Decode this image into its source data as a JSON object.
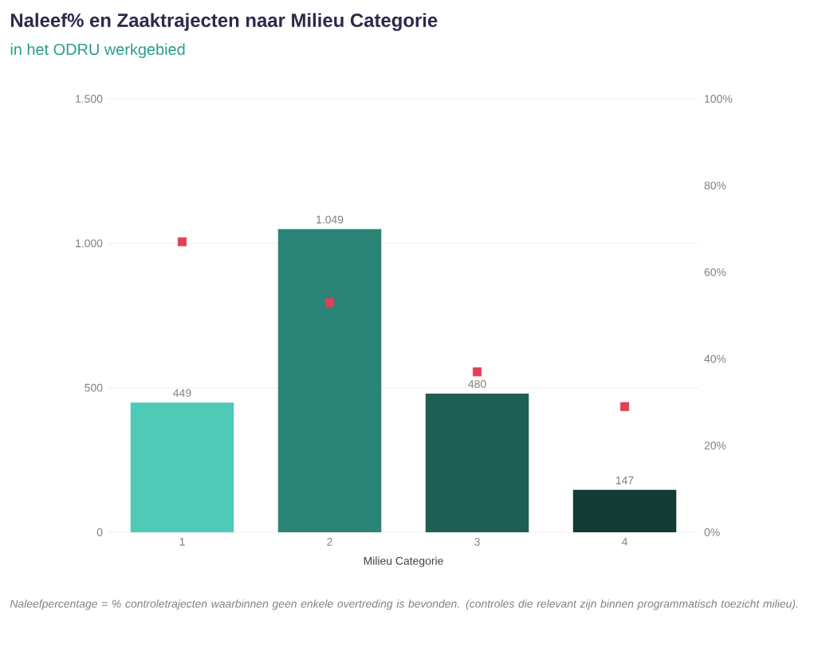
{
  "chart_data": {
    "type": "bar",
    "title": "Naleef% en Zaaktrajecten naar Milieu Categorie",
    "subtitle": "in het ODRU werkgebied",
    "xlabel": "Milieu Categorie",
    "categories": [
      "1",
      "2",
      "3",
      "4"
    ],
    "series": [
      {
        "colors": [
          "#4ecab6",
          "#2a8576",
          "#1f5e54",
          "#123b33"
        ],
        "values": [
          449,
          1049,
          480,
          147
        ],
        "value_labels": [
          "449",
          "1.049",
          "480",
          "147"
        ]
      },
      {
        "type": "scatter",
        "axis": "y2",
        "color": "#e0405a",
        "marker": "square",
        "values": [
          67,
          53,
          37,
          29
        ]
      }
    ],
    "ylim": [
      0,
      1500
    ],
    "yticks": [
      0,
      500,
      {
        "value": 1000,
        "label": "1.000"
      },
      {
        "value": 1500,
        "label": "1.500"
      }
    ],
    "y2lim": [
      0,
      100
    ],
    "y2ticks": [
      {
        "value": 0,
        "label": "0%"
      },
      {
        "value": 20,
        "label": "20%"
      },
      {
        "value": 40,
        "label": "40%"
      },
      {
        "value": 60,
        "label": "60%"
      },
      {
        "value": 80,
        "label": "80%"
      },
      {
        "value": 100,
        "label": "100%"
      }
    ],
    "grid": "y",
    "annotations": [
      "*Naleefpercentage = % controletrajecten waarbinnen geen enkele overtreding is bevonden. (controles die relevant zijn binnen programmatisch toezicht milieu).*"
    ]
  }
}
